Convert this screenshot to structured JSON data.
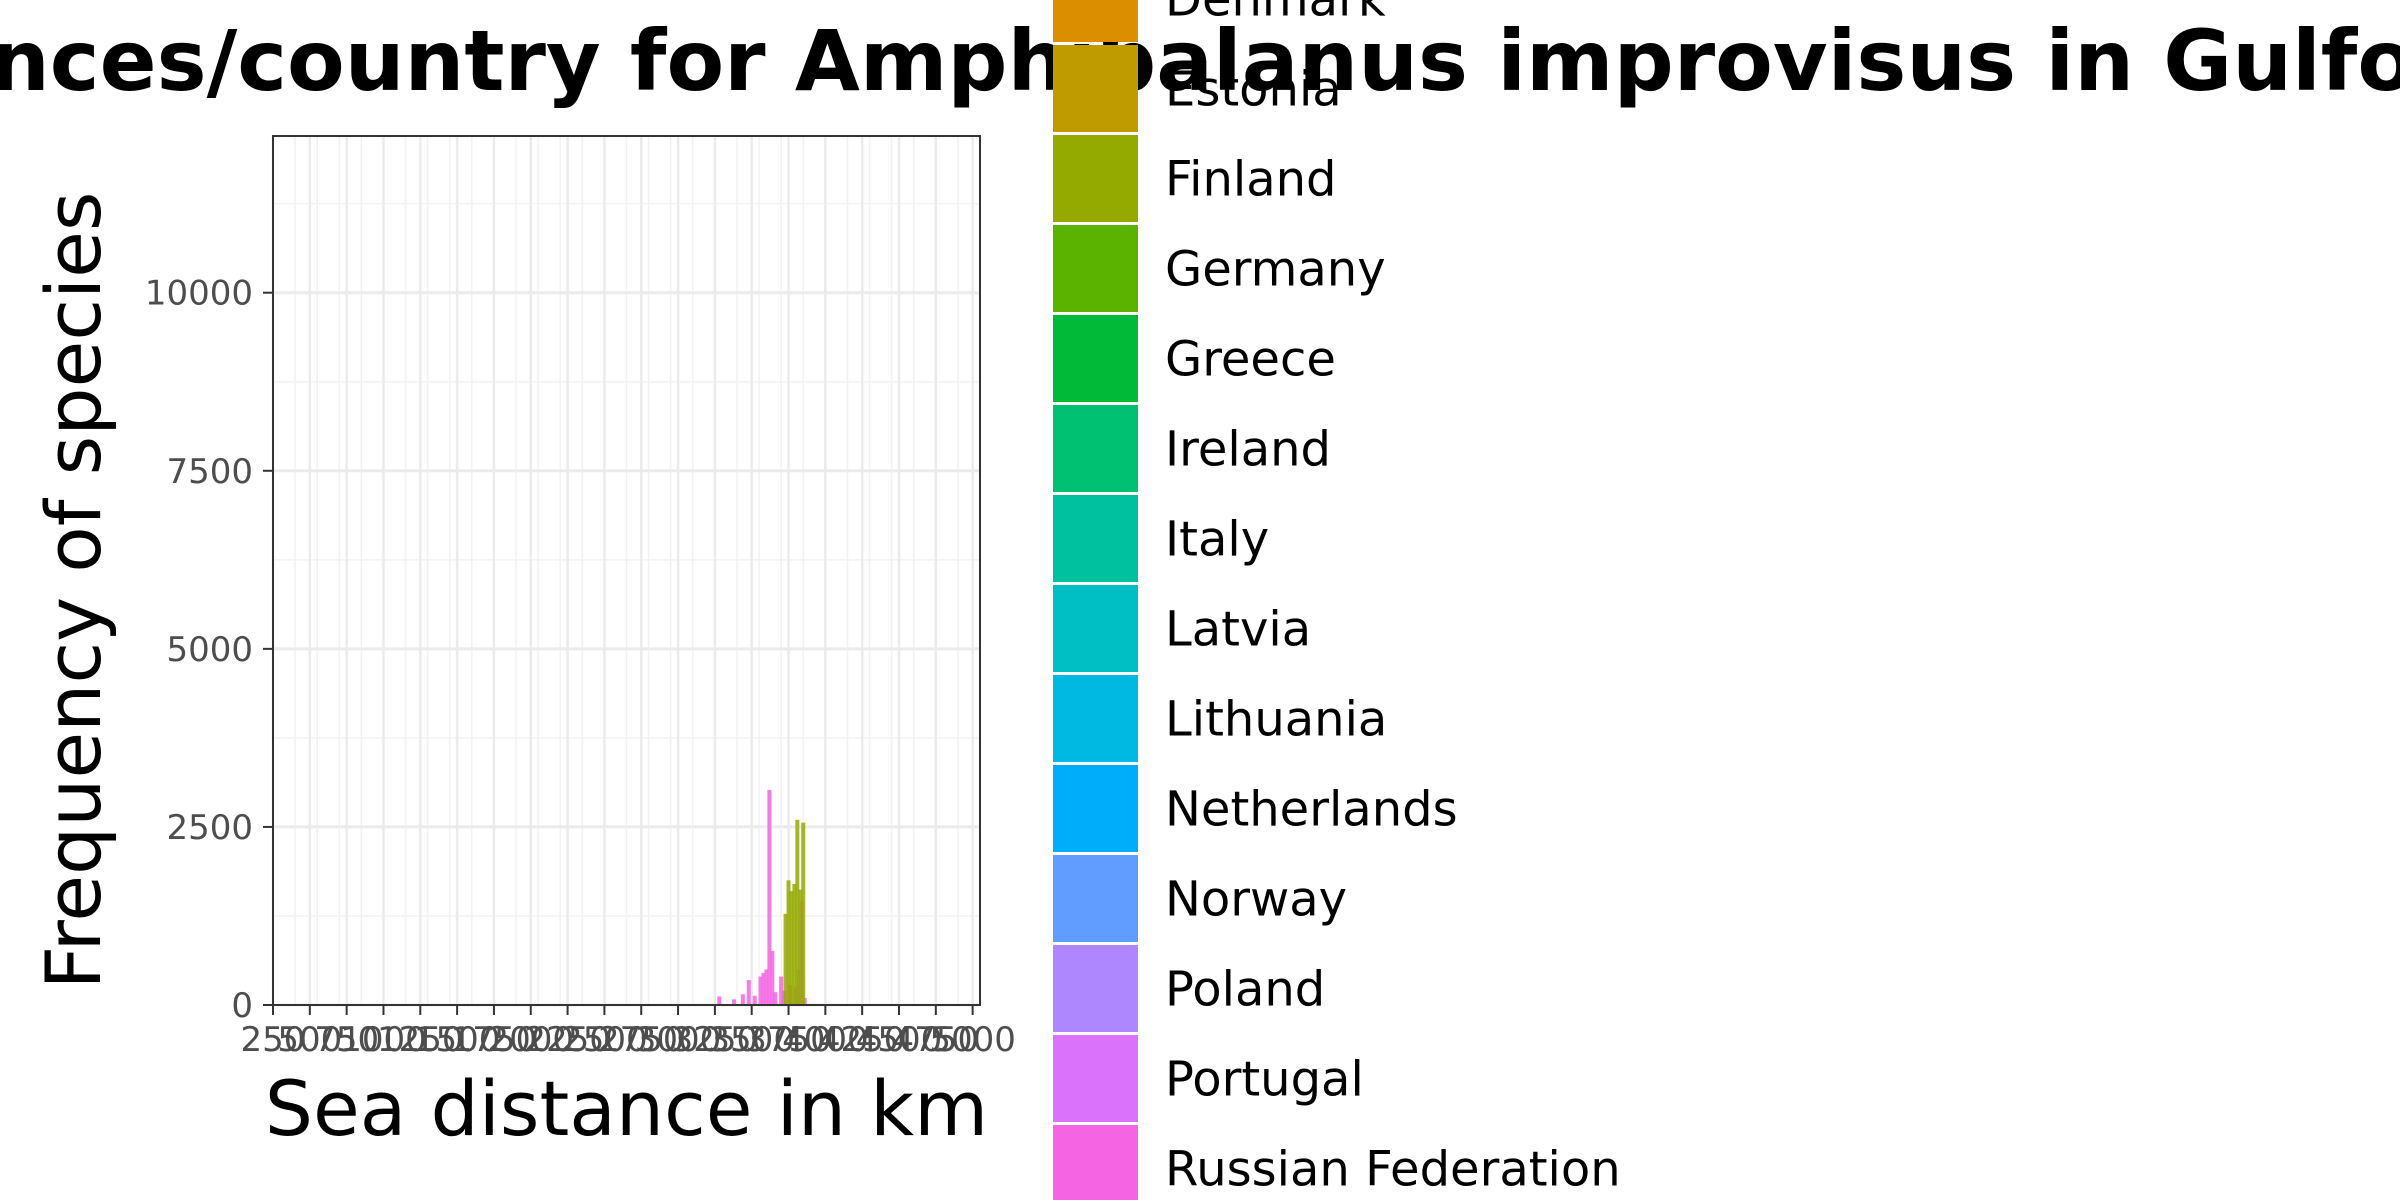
{
  "chart_data": {
    "type": "bar",
    "title": "nces/country for Amphibalanus improvisus in GulfofPiran",
    "xlabel": "Sea distance in km",
    "ylabel": "Frequency of species",
    "ylim": [
      0,
      12200
    ],
    "y_ticks": [
      0,
      2500,
      5000,
      7500,
      10000
    ],
    "y_tick_labels": [
      "0",
      "2500",
      "5000",
      "7500",
      "10000"
    ],
    "xlim": [
      250,
      5050
    ],
    "x_ticks": [
      250,
      500,
      750,
      1000,
      1250,
      1500,
      1750,
      2000,
      2250,
      2500,
      2750,
      3000,
      3250,
      3500,
      3750,
      4000,
      4250,
      4500,
      4750,
      5000
    ],
    "x_tick_labels": [
      "250",
      "500",
      "750",
      "1000",
      "1250",
      "1500",
      "1750",
      "2000",
      "2250",
      "2500",
      "2750",
      "3000",
      "3250",
      "3500",
      "3750",
      "4000",
      "4250",
      "4500",
      "4750",
      "5000"
    ],
    "x_minor_ticks": [
      400,
      550,
      700,
      850,
      1150,
      1300,
      1450,
      1600,
      1900,
      2050,
      2200,
      2350,
      2650,
      2800,
      2950,
      3100,
      3400,
      3550,
      3700,
      3850,
      4150,
      4300,
      4450,
      4600,
      4900
    ],
    "grid": true,
    "legend_position": "right",
    "legend_entries": [
      {
        "name": "Denmark",
        "color": "#DB8E00"
      },
      {
        "name": "Estonia",
        "color": "#C09B00"
      },
      {
        "name": "Finland",
        "color": "#94AA00"
      },
      {
        "name": "Germany",
        "color": "#5BB300"
      },
      {
        "name": "Greece",
        "color": "#00BA38"
      },
      {
        "name": "Ireland",
        "color": "#00C171"
      },
      {
        "name": "Italy",
        "color": "#00C19F"
      },
      {
        "name": "Latvia",
        "color": "#00BFC4"
      },
      {
        "name": "Lithuania",
        "color": "#00B9E3"
      },
      {
        "name": "Netherlands",
        "color": "#00ADFA"
      },
      {
        "name": "Norway",
        "color": "#619CFF"
      },
      {
        "name": "Poland",
        "color": "#AE87FF"
      },
      {
        "name": "Portugal",
        "color": "#DB72FB"
      },
      {
        "name": "Russian Federation",
        "color": "#F564E3"
      }
    ],
    "series": [
      {
        "name": "Russian Federation",
        "color": "#F564E3",
        "bars": [
          {
            "x": 3280,
            "y": 120
          },
          {
            "x": 3380,
            "y": 80
          },
          {
            "x": 3440,
            "y": 150
          },
          {
            "x": 3480,
            "y": 350
          },
          {
            "x": 3520,
            "y": 130
          },
          {
            "x": 3560,
            "y": 400
          },
          {
            "x": 3580,
            "y": 450
          },
          {
            "x": 3600,
            "y": 500
          },
          {
            "x": 3620,
            "y": 3020
          },
          {
            "x": 3640,
            "y": 760
          },
          {
            "x": 3660,
            "y": 180
          },
          {
            "x": 3700,
            "y": 400
          },
          {
            "x": 3720,
            "y": 200
          },
          {
            "x": 3760,
            "y": 280
          },
          {
            "x": 3800,
            "y": 250
          },
          {
            "x": 3820,
            "y": 500
          },
          {
            "x": 3840,
            "y": 1450
          },
          {
            "x": 3860,
            "y": 100
          }
        ]
      },
      {
        "name": "Finland",
        "color": "#94AA00",
        "bars": [
          {
            "x": 3730,
            "y": 1280
          },
          {
            "x": 3750,
            "y": 1750
          },
          {
            "x": 3770,
            "y": 1600
          },
          {
            "x": 3790,
            "y": 1700
          },
          {
            "x": 3810,
            "y": 2600
          },
          {
            "x": 3830,
            "y": 1620
          },
          {
            "x": 3850,
            "y": 2560
          }
        ]
      }
    ]
  }
}
